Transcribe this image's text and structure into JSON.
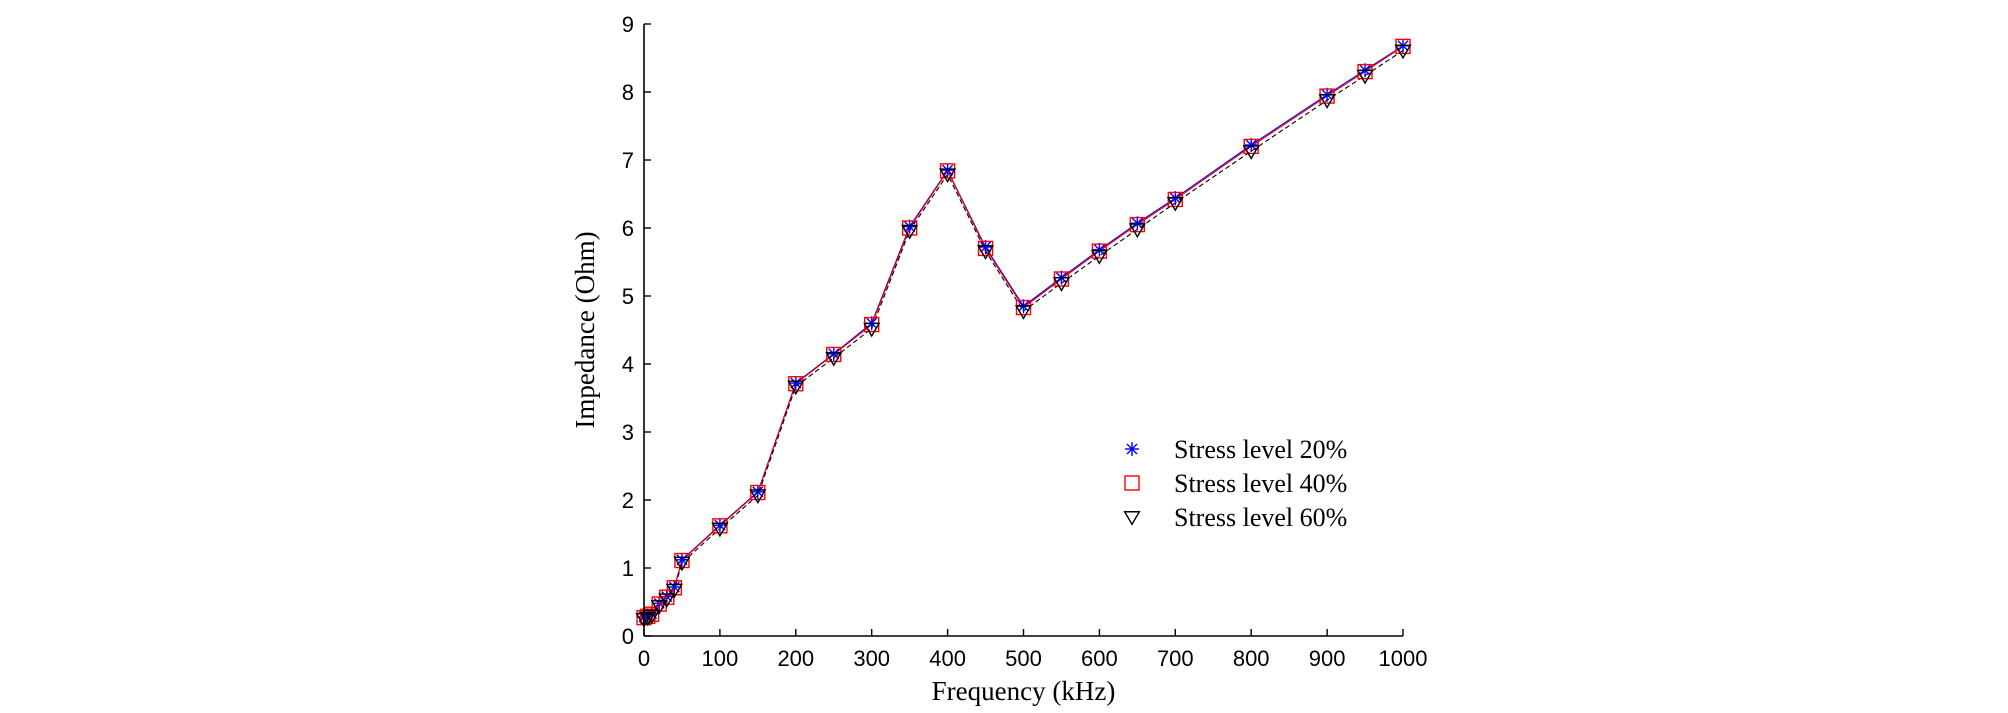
{
  "chart_data": {
    "type": "line",
    "title": "",
    "xlabel": "Frequency (kHz)",
    "ylabel": "Impedance (Ohm)",
    "xlim": [
      0,
      1000
    ],
    "ylim": [
      0,
      9
    ],
    "xticks": [
      0,
      100,
      200,
      300,
      400,
      500,
      600,
      700,
      800,
      900,
      1000
    ],
    "yticks": [
      0,
      1,
      2,
      3,
      4,
      5,
      6,
      7,
      8,
      9
    ],
    "grid": false,
    "legend_position": "lower-right",
    "x": [
      0,
      5,
      10,
      20,
      30,
      40,
      50,
      100,
      150,
      200,
      250,
      300,
      350,
      400,
      450,
      500,
      550,
      600,
      650,
      700,
      800,
      900,
      950,
      1000
    ],
    "series": [
      {
        "name": "Stress level 20%",
        "color": "#0000ff",
        "marker": "asterisk",
        "line_style": "solid",
        "values": [
          0.28,
          0.3,
          0.33,
          0.48,
          0.58,
          0.72,
          1.12,
          1.63,
          2.12,
          3.72,
          4.15,
          4.6,
          6.02,
          6.85,
          5.72,
          4.85,
          5.27,
          5.68,
          6.07,
          6.44,
          7.22,
          7.96,
          8.32,
          8.68
        ]
      },
      {
        "name": "Stress level 40%",
        "color": "#ff0000",
        "marker": "square",
        "line_style": "solid",
        "values": [
          0.27,
          0.29,
          0.32,
          0.47,
          0.57,
          0.71,
          1.11,
          1.62,
          2.11,
          3.71,
          4.14,
          4.58,
          6.0,
          6.84,
          5.7,
          4.83,
          5.25,
          5.66,
          6.05,
          6.42,
          7.2,
          7.94,
          8.3,
          8.67
        ]
      },
      {
        "name": "Stress level 60%",
        "color": "#000000",
        "marker": "triangle-down",
        "line_style": "dashed",
        "values": [
          0.25,
          0.27,
          0.3,
          0.44,
          0.54,
          0.68,
          1.08,
          1.58,
          2.07,
          3.67,
          4.09,
          4.52,
          5.96,
          6.79,
          5.66,
          4.78,
          5.19,
          5.59,
          5.98,
          6.37,
          7.13,
          7.88,
          8.24,
          8.61
        ]
      }
    ]
  }
}
